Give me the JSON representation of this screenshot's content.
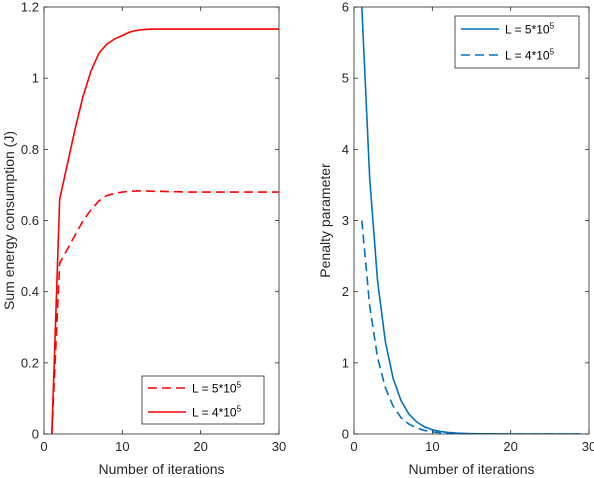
{
  "chart_data": [
    {
      "type": "line",
      "xlabel": "Number of iterations",
      "ylabel": "Sum energy consumption (J)",
      "xlim": [
        0,
        30
      ],
      "ylim": [
        0,
        1.2
      ],
      "xticks": [
        0,
        10,
        20,
        30
      ],
      "yticks": [
        0,
        0.2,
        0.4,
        0.6,
        0.8,
        1,
        1.2
      ],
      "xtick_labels": [
        "0",
        "10",
        "20",
        "30"
      ],
      "ytick_labels": [
        "0",
        "0.2",
        "0.4",
        "0.6",
        "0.8",
        "1",
        "1.2"
      ],
      "grid": false,
      "legend_position": "bottom-right",
      "series": [
        {
          "name": "L = 5*10^5",
          "label_base": "L = 5*10",
          "label_exp": "5",
          "color": "#ff0000",
          "dash": "dashed",
          "x": [
            1,
            2,
            3,
            4,
            5,
            6,
            7,
            8,
            9,
            10,
            11,
            12,
            13,
            14,
            15,
            16,
            17,
            18,
            19,
            20,
            21,
            22,
            23,
            24,
            25,
            26,
            27,
            28,
            29,
            30
          ],
          "y": [
            0,
            0.48,
            0.52,
            0.56,
            0.6,
            0.63,
            0.655,
            0.67,
            0.676,
            0.68,
            0.682,
            0.683,
            0.683,
            0.682,
            0.682,
            0.681,
            0.681,
            0.68,
            0.68,
            0.68,
            0.68,
            0.68,
            0.68,
            0.68,
            0.68,
            0.68,
            0.68,
            0.68,
            0.68,
            0.68
          ]
        },
        {
          "name": "L = 4*10^5",
          "label_base": "L = 4*10",
          "label_exp": "5",
          "color": "#ff0000",
          "dash": "solid",
          "x": [
            1,
            2,
            3,
            4,
            5,
            6,
            7,
            8,
            9,
            10,
            11,
            12,
            13,
            14,
            15,
            16,
            17,
            18,
            19,
            20,
            21,
            22,
            23,
            24,
            25,
            26,
            27,
            28,
            29,
            30
          ],
          "y": [
            0,
            0.66,
            0.76,
            0.86,
            0.95,
            1.02,
            1.07,
            1.095,
            1.11,
            1.12,
            1.13,
            1.135,
            1.137,
            1.138,
            1.138,
            1.138,
            1.138,
            1.138,
            1.138,
            1.138,
            1.138,
            1.138,
            1.138,
            1.138,
            1.138,
            1.138,
            1.138,
            1.138,
            1.138,
            1.138
          ]
        }
      ]
    },
    {
      "type": "line",
      "xlabel": "Number of iterations",
      "ylabel": "Penalty parameter",
      "xlim": [
        0,
        30
      ],
      "ylim": [
        0,
        6
      ],
      "xticks": [
        0,
        10,
        20,
        30
      ],
      "yticks": [
        0,
        1,
        2,
        3,
        4,
        5,
        6
      ],
      "xtick_labels": [
        "0",
        "10",
        "20",
        "30"
      ],
      "ytick_labels": [
        "0",
        "1",
        "2",
        "3",
        "4",
        "5",
        "6"
      ],
      "grid": false,
      "legend_position": "top-right",
      "series": [
        {
          "name": "L = 5*10^5",
          "label_base": "L = 5*10",
          "label_exp": "5",
          "color": "#0072bd",
          "dash": "solid",
          "x": [
            1,
            2,
            3,
            4,
            5,
            6,
            7,
            8,
            9,
            10,
            11,
            12,
            13,
            14,
            15,
            16,
            17,
            18,
            19,
            20,
            21,
            22,
            23,
            24,
            25,
            26,
            27,
            28,
            29
          ],
          "y": [
            6,
            3.6,
            2.16,
            1.3,
            0.78,
            0.47,
            0.28,
            0.17,
            0.1,
            0.06,
            0.036,
            0.022,
            0.013,
            0.008,
            0.005,
            0.003,
            0.002,
            0.001,
            0.001,
            0,
            0,
            0,
            0,
            0,
            0,
            0,
            0,
            0,
            0
          ]
        },
        {
          "name": "L = 4*10^5",
          "label_base": "L = 4*10",
          "label_exp": "5",
          "color": "#0072bd",
          "dash": "dashed",
          "x": [
            1,
            2,
            3,
            4,
            5,
            6,
            7,
            8,
            9,
            10,
            11,
            12,
            13,
            14,
            15,
            16,
            17,
            18,
            19,
            20,
            21,
            22,
            23,
            24,
            25,
            26,
            27,
            28,
            29
          ],
          "y": [
            3,
            1.8,
            1.08,
            0.65,
            0.39,
            0.23,
            0.14,
            0.084,
            0.05,
            0.03,
            0.018,
            0.011,
            0.007,
            0.004,
            0.002,
            0.001,
            0.001,
            0,
            0,
            0,
            0,
            0,
            0,
            0,
            0,
            0,
            0,
            0,
            0
          ]
        }
      ]
    }
  ]
}
